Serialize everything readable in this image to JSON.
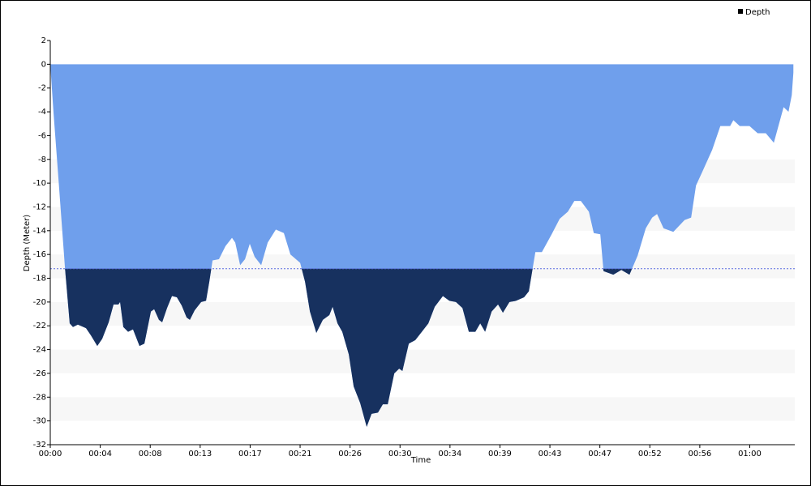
{
  "chart_data": {
    "type": "area",
    "x_label": "Time",
    "y_label": "Depth (Meter)",
    "xlim": [
      0,
      64
    ],
    "ylim": [
      -32,
      2
    ],
    "xticks": [
      {
        "value": 0,
        "label": "00:00"
      },
      {
        "value": 4.295,
        "label": "00:04"
      },
      {
        "value": 8.59,
        "label": "00:08"
      },
      {
        "value": 12.885,
        "label": "00:13"
      },
      {
        "value": 17.18,
        "label": "00:17"
      },
      {
        "value": 21.475,
        "label": "00:21"
      },
      {
        "value": 25.77,
        "label": "00:26"
      },
      {
        "value": 30.065,
        "label": "00:30"
      },
      {
        "value": 34.36,
        "label": "00:34"
      },
      {
        "value": 38.655,
        "label": "00:39"
      },
      {
        "value": 42.95,
        "label": "00:43"
      },
      {
        "value": 47.245,
        "label": "00:47"
      },
      {
        "value": 51.54,
        "label": "00:52"
      },
      {
        "value": 55.835,
        "label": "00:56"
      },
      {
        "value": 60.13,
        "label": "01:00"
      }
    ],
    "yticks": [
      2,
      0,
      -2,
      -4,
      -6,
      -8,
      -10,
      -12,
      -14,
      -16,
      -18,
      -20,
      -22,
      -24,
      -26,
      -28,
      -30,
      -32
    ],
    "threshold": -17.2,
    "color_above": "#6f9fec",
    "color_below": "#17315f",
    "threshold_color": "#5a6be0",
    "band_color": "#f7f7f7",
    "legend": "upper right",
    "x": [
      0,
      0.28,
      0.7,
      1.26,
      1.67,
      1.95,
      2.37,
      3.07,
      3.49,
      4.04,
      4.46,
      5.02,
      5.44,
      5.86,
      6.0,
      6.28,
      6.69,
      7.11,
      7.67,
      8.09,
      8.65,
      8.93,
      9.34,
      9.62,
      10.04,
      10.46,
      10.88,
      11.3,
      11.72,
      12.0,
      12.41,
      12.97,
      13.39,
      13.67,
      13.95,
      14.5,
      15.06,
      15.62,
      15.9,
      16.32,
      16.74,
      17.15,
      17.57,
      18.13,
      18.69,
      19.39,
      20.08,
      20.64,
      21.48,
      21.9,
      22.32,
      22.87,
      23.43,
      23.99,
      24.27,
      24.69,
      25.1,
      25.66,
      26.08,
      26.64,
      27.2,
      27.62,
      28.17,
      28.59,
      29.01,
      29.57,
      29.99,
      30.27,
      30.82,
      31.38,
      31.94,
      32.5,
      33.05,
      33.75,
      34.31,
      34.87,
      35.43,
      35.98,
      36.54,
      36.96,
      37.38,
      37.94,
      38.49,
      38.91,
      39.47,
      40.03,
      40.73,
      41.14,
      41.7,
      42.26,
      43.1,
      43.79,
      44.49,
      45.05,
      45.61,
      46.3,
      46.72,
      47.28,
      47.56,
      48.4,
      49.09,
      49.79,
      50.49,
      51.19,
      51.74,
      52.16,
      52.72,
      53.56,
      54.53,
      55.09,
      55.51,
      56.07,
      56.9,
      57.6,
      58.44,
      58.72,
      59.27,
      60.11,
      60.81,
      61.51,
      62.2,
      63.04,
      63.46,
      63.74,
      63.88
    ],
    "series": [
      {
        "name": "Depth",
        "color": "#000000",
        "values": [
          0,
          -4.1,
          -9.6,
          -17.1,
          -21.8,
          -22.1,
          -21.9,
          -22.2,
          -22.8,
          -23.7,
          -23.1,
          -21.7,
          -20.2,
          -20.2,
          -20.0,
          -22.1,
          -22.5,
          -22.3,
          -23.7,
          -23.5,
          -20.8,
          -20.6,
          -21.5,
          -21.7,
          -20.5,
          -19.5,
          -19.6,
          -20.3,
          -21.3,
          -21.5,
          -20.7,
          -20.0,
          -19.9,
          -18.3,
          -16.5,
          -16.4,
          -15.3,
          -14.6,
          -15.0,
          -16.9,
          -16.4,
          -15.1,
          -16.2,
          -16.9,
          -15.0,
          -13.9,
          -14.2,
          -16.0,
          -16.7,
          -18.3,
          -20.8,
          -22.6,
          -21.5,
          -21.1,
          -20.4,
          -21.8,
          -22.5,
          -24.4,
          -27.1,
          -28.5,
          -30.5,
          -29.4,
          -29.3,
          -28.6,
          -28.6,
          -26.0,
          -25.6,
          -25.8,
          -23.5,
          -23.2,
          -22.5,
          -21.8,
          -20.4,
          -19.5,
          -19.9,
          -20.0,
          -20.5,
          -22.5,
          -22.5,
          -21.8,
          -22.5,
          -20.8,
          -20.2,
          -20.9,
          -20.0,
          -19.9,
          -19.6,
          -19.1,
          -15.8,
          -15.8,
          -14.3,
          -13.0,
          -12.4,
          -11.5,
          -11.5,
          -12.4,
          -14.2,
          -14.3,
          -17.4,
          -17.7,
          -17.3,
          -17.7,
          -16.1,
          -13.8,
          -12.9,
          -12.6,
          -13.8,
          -14.1,
          -13.1,
          -12.9,
          -10.2,
          -9.0,
          -7.2,
          -5.2,
          -5.2,
          -4.7,
          -5.2,
          -5.2,
          -5.8,
          -5.8,
          -6.6,
          -3.6,
          -4.0,
          -2.6,
          -0.7
        ]
      }
    ]
  }
}
